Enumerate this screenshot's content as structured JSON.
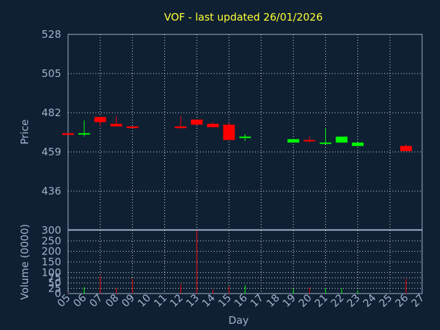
{
  "chart_data": [
    {
      "type": "candlestick",
      "title": "VOF - last updated 26/01/2026",
      "ylabel": "Price",
      "ylim": [
        436,
        528
      ],
      "yticks": [
        436,
        459,
        482,
        505,
        528
      ],
      "grid": true,
      "colors": {
        "up": "#00ff00",
        "down": "#ff0000"
      },
      "days": [
        "05",
        "06",
        "07",
        "08",
        "09",
        "10",
        "11",
        "12",
        "13",
        "14",
        "15",
        "16",
        "17",
        "18",
        "19",
        "20",
        "21",
        "22",
        "23",
        "24",
        "25",
        "26",
        "27"
      ],
      "candles": [
        {
          "day": "05",
          "open": 470,
          "close": 469,
          "high": 470,
          "low": 469
        },
        {
          "day": "06",
          "open": 469.5,
          "close": 470,
          "high": 477.5,
          "low": 468
        },
        {
          "day": "07",
          "open": 479.5,
          "close": 476.5,
          "high": 479.5,
          "low": 474
        },
        {
          "day": "08",
          "open": 475.5,
          "close": 474,
          "high": 480,
          "low": 474
        },
        {
          "day": "09",
          "open": 474,
          "close": 473,
          "high": 474,
          "low": 473
        },
        {
          "day": "12",
          "open": 474,
          "close": 473,
          "high": 480,
          "low": 472.5
        },
        {
          "day": "13",
          "open": 478,
          "close": 475,
          "high": 478,
          "low": 475
        },
        {
          "day": "14",
          "open": 475.5,
          "close": 473.5,
          "high": 476.5,
          "low": 473.5
        },
        {
          "day": "15",
          "open": 475,
          "close": 466,
          "high": 476,
          "low": 466
        },
        {
          "day": "16",
          "open": 467.5,
          "close": 468,
          "high": 469.5,
          "low": 465.5
        },
        {
          "day": "19",
          "open": 464.5,
          "close": 466.5,
          "high": 466.5,
          "low": 464.5
        },
        {
          "day": "20",
          "open": 466,
          "close": 465.5,
          "high": 468,
          "low": 464.5
        },
        {
          "day": "21",
          "open": 464,
          "close": 464.5,
          "high": 473,
          "low": 463.5
        },
        {
          "day": "22",
          "open": 464.5,
          "close": 468,
          "high": 468,
          "low": 464.5
        },
        {
          "day": "23",
          "open": 462.5,
          "close": 464.5,
          "high": 464.5,
          "low": 462.5
        },
        {
          "day": "26",
          "open": 462.5,
          "close": 459.5,
          "high": 463.5,
          "low": 459.5
        }
      ]
    },
    {
      "type": "bar",
      "xlabel": "Day",
      "ylabel": "Volume (0000)",
      "ylim": [
        0,
        300
      ],
      "yticks": [
        0,
        25,
        50,
        75,
        100,
        150,
        200,
        250,
        300
      ],
      "grid": true,
      "days": [
        "05",
        "06",
        "07",
        "08",
        "09",
        "10",
        "11",
        "12",
        "13",
        "14",
        "15",
        "16",
        "17",
        "18",
        "19",
        "20",
        "21",
        "22",
        "23",
        "24",
        "25",
        "26",
        "27"
      ],
      "volumes": [
        {
          "day": "05",
          "value": 5,
          "color": "down"
        },
        {
          "day": "06",
          "value": 30,
          "color": "up"
        },
        {
          "day": "07",
          "value": 85,
          "color": "down"
        },
        {
          "day": "08",
          "value": 28,
          "color": "down"
        },
        {
          "day": "09",
          "value": 70,
          "color": "down"
        },
        {
          "day": "12",
          "value": 45,
          "color": "down"
        },
        {
          "day": "13",
          "value": 300,
          "color": "down"
        },
        {
          "day": "14",
          "value": 20,
          "color": "down"
        },
        {
          "day": "15",
          "value": 35,
          "color": "down"
        },
        {
          "day": "16",
          "value": 40,
          "color": "up"
        },
        {
          "day": "19",
          "value": 22,
          "color": "up"
        },
        {
          "day": "20",
          "value": 30,
          "color": "down"
        },
        {
          "day": "21",
          "value": 26,
          "color": "up"
        },
        {
          "day": "22",
          "value": 25,
          "color": "up"
        },
        {
          "day": "23",
          "value": 15,
          "color": "up"
        },
        {
          "day": "26",
          "value": 70,
          "color": "down"
        }
      ]
    }
  ]
}
